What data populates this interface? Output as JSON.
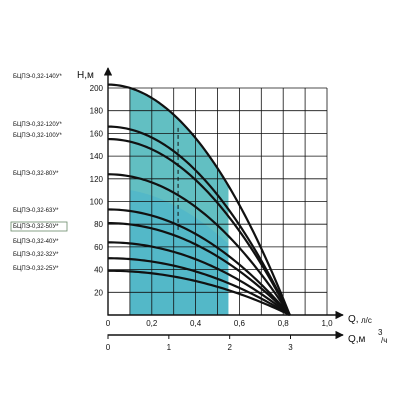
{
  "chart_data": {
    "type": "line",
    "y_axis": {
      "label": "H,м",
      "range": [
        0,
        200
      ],
      "ticks": [
        "20",
        "40",
        "60",
        "80",
        "100",
        "120",
        "140",
        "160",
        "180",
        "200"
      ]
    },
    "x_axis_primary": {
      "label_main": "Q,",
      "label_unit": "л/с",
      "range": [
        0,
        1.0
      ],
      "ticks": [
        "0",
        "0,2",
        "0,4",
        "0,6",
        "0,8",
        "1,0"
      ],
      "tick_values": [
        0,
        0.2,
        0.4,
        0.6,
        0.8,
        1.0
      ]
    },
    "x_axis_secondary": {
      "label_main": "Q,м",
      "label_sup": "3",
      "label_unit": "/ч",
      "ticks": [
        "0",
        "1",
        "2",
        "3"
      ],
      "tick_values_lps": [
        0,
        0.2778,
        0.5556,
        0.8333
      ]
    },
    "working_zone": {
      "q_range": [
        0.1,
        0.55
      ],
      "color": "#53b8c8",
      "upper_color": "#6fc4bd"
    },
    "recommended_flow_line": {
      "q": 0.32,
      "h_range": [
        75,
        165
      ]
    },
    "series_end": {
      "q": 0.83,
      "h": 0
    },
    "series": [
      {
        "name": "БЦПЭ-0,32-140У*",
        "h0": 203
      },
      {
        "name": "БЦПЭ-0,32-120У*",
        "h0": 166
      },
      {
        "name": "БЦПЭ-0,32-100У*",
        "h0": 155
      },
      {
        "name": "БЦПЭ-0,32-80У*",
        "h0": 124
      },
      {
        "name": "БЦПЭ-0,32-63У*",
        "h0": 93
      },
      {
        "name": "БЦПЭ-0,32-50У*",
        "h0": 81,
        "highlighted": true
      },
      {
        "name": "БЦПЭ-0,32-40У*",
        "h0": 64
      },
      {
        "name": "БЦПЭ-0,32-32У*",
        "h0": 50
      },
      {
        "name": "БЦПЭ-0,32-25У*",
        "h0": 39
      }
    ],
    "grid": true
  },
  "colors": {
    "zone": "#53b8c8",
    "zone_upper": "#6fc4bd",
    "grid": "#111111",
    "curve": "#111111",
    "highlight_box": "#6a8a6a"
  }
}
